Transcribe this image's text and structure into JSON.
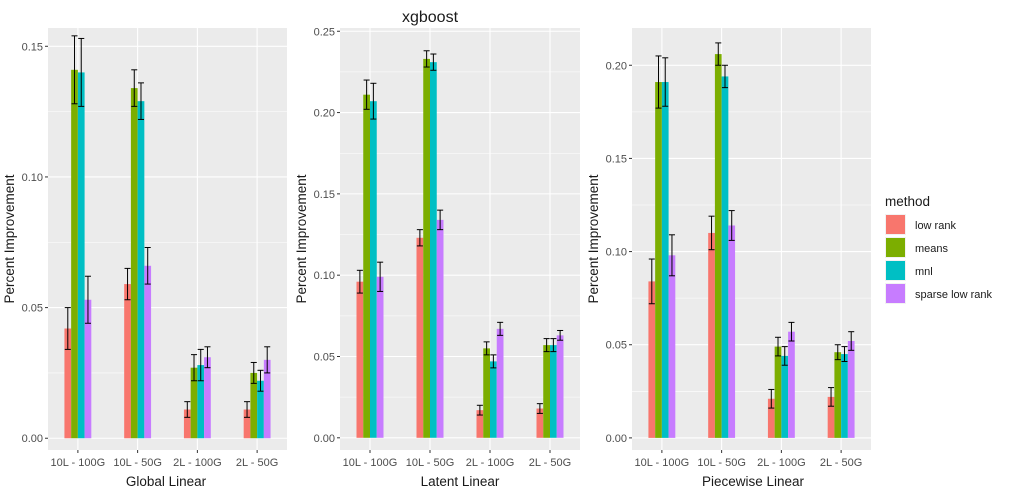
{
  "title": "xgboost",
  "legend": {
    "title": "method",
    "position": "right",
    "entries": [
      {
        "name": "low rank",
        "color": "#F8766D"
      },
      {
        "name": "means",
        "color": "#7CAE00"
      },
      {
        "name": "mnl",
        "color": "#00BFC4"
      },
      {
        "name": "sparse low rank",
        "color": "#C77CFF"
      }
    ]
  },
  "chart_data": [
    {
      "type": "bar",
      "xlabel": "Global Linear",
      "ylabel": "Percent Improvement",
      "categories": [
        "10L - 100G",
        "10L - 50G",
        "2L - 100G",
        "2L - 50G"
      ],
      "ylim": [
        -0.0045,
        0.157
      ],
      "yticks": [
        0,
        0.05,
        0.1,
        0.15
      ],
      "yticklabels": [
        "0.00",
        "0.05",
        "0.10",
        "0.15"
      ],
      "series": [
        {
          "name": "low rank",
          "values": [
            0.042,
            0.059,
            0.011,
            0.011
          ],
          "err": [
            0.008,
            0.006,
            0.003,
            0.003
          ]
        },
        {
          "name": "means",
          "values": [
            0.141,
            0.134,
            0.027,
            0.025
          ],
          "err": [
            0.013,
            0.007,
            0.005,
            0.004
          ]
        },
        {
          "name": "mnl",
          "values": [
            0.14,
            0.129,
            0.028,
            0.022
          ],
          "err": [
            0.013,
            0.007,
            0.006,
            0.004
          ]
        },
        {
          "name": "sparse low rank",
          "values": [
            0.053,
            0.066,
            0.031,
            0.03
          ],
          "err": [
            0.009,
            0.007,
            0.004,
            0.005
          ]
        }
      ]
    },
    {
      "type": "bar",
      "xlabel": "Latent Linear",
      "ylabel": "Percent Improvement",
      "categories": [
        "10L - 100G",
        "10L - 50G",
        "2L - 100G",
        "2L - 50G"
      ],
      "ylim": [
        -0.0075,
        0.252
      ],
      "yticks": [
        0,
        0.05,
        0.1,
        0.15,
        0.2,
        0.25
      ],
      "yticklabels": [
        "0.00",
        "0.05",
        "0.10",
        "0.15",
        "0.20",
        "0.25"
      ],
      "series": [
        {
          "name": "low rank",
          "values": [
            0.096,
            0.123,
            0.017,
            0.018
          ],
          "err": [
            0.007,
            0.005,
            0.003,
            0.003
          ]
        },
        {
          "name": "means",
          "values": [
            0.211,
            0.233,
            0.055,
            0.057
          ],
          "err": [
            0.009,
            0.005,
            0.004,
            0.004
          ]
        },
        {
          "name": "mnl",
          "values": [
            0.207,
            0.231,
            0.047,
            0.057
          ],
          "err": [
            0.011,
            0.005,
            0.004,
            0.004
          ]
        },
        {
          "name": "sparse low rank",
          "values": [
            0.099,
            0.134,
            0.067,
            0.063
          ],
          "err": [
            0.009,
            0.006,
            0.004,
            0.003
          ]
        }
      ]
    },
    {
      "type": "bar",
      "xlabel": "Piecewise Linear",
      "ylabel": "Percent Improvement",
      "categories": [
        "10L - 100G",
        "10L - 50G",
        "2L - 100G",
        "2L - 50G"
      ],
      "ylim": [
        -0.0065,
        0.22
      ],
      "yticks": [
        0,
        0.05,
        0.1,
        0.15,
        0.2
      ],
      "yticklabels": [
        "0.00",
        "0.05",
        "0.10",
        "0.15",
        "0.20"
      ],
      "series": [
        {
          "name": "low rank",
          "values": [
            0.084,
            0.11,
            0.021,
            0.022
          ],
          "err": [
            0.012,
            0.009,
            0.005,
            0.005
          ]
        },
        {
          "name": "means",
          "values": [
            0.191,
            0.206,
            0.049,
            0.046
          ],
          "err": [
            0.014,
            0.006,
            0.005,
            0.004
          ]
        },
        {
          "name": "mnl",
          "values": [
            0.191,
            0.194,
            0.044,
            0.045
          ],
          "err": [
            0.013,
            0.006,
            0.005,
            0.004
          ]
        },
        {
          "name": "sparse low rank",
          "values": [
            0.098,
            0.114,
            0.057,
            0.052
          ],
          "err": [
            0.011,
            0.008,
            0.005,
            0.005
          ]
        }
      ]
    }
  ]
}
